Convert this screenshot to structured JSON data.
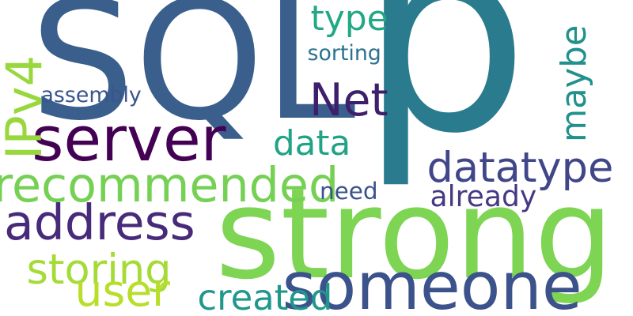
{
  "words": [
    {
      "text": "p",
      "color": "#2a7b8e"
    },
    {
      "text": "SQL",
      "color": "#3a5f8c"
    },
    {
      "text": "strong",
      "color": "#7ed453"
    },
    {
      "text": "datatype",
      "color": "#404688"
    },
    {
      "text": "recommended",
      "color": "#75d054"
    },
    {
      "text": "address",
      "color": "#472a7a"
    },
    {
      "text": "server",
      "color": "#440154"
    },
    {
      "text": "someone",
      "color": "#3b528b"
    },
    {
      "text": "storing",
      "color": "#a5db36"
    },
    {
      "text": "maybe",
      "color": "#21918c"
    },
    {
      "text": "IPv4",
      "color": "#98d83e"
    },
    {
      "text": "Net",
      "color": "#3e1f6b"
    },
    {
      "text": "already",
      "color": "#443983"
    },
    {
      "text": "type",
      "color": "#22a884"
    },
    {
      "text": "data",
      "color": "#20a386"
    },
    {
      "text": "created",
      "color": "#1f988b"
    },
    {
      "text": "user",
      "color": "#b8de29"
    },
    {
      "text": "assembly",
      "color": "#39558c"
    },
    {
      "text": "sorting",
      "color": "#2c728e"
    },
    {
      "text": "need",
      "color": "#3a538b"
    }
  ]
}
